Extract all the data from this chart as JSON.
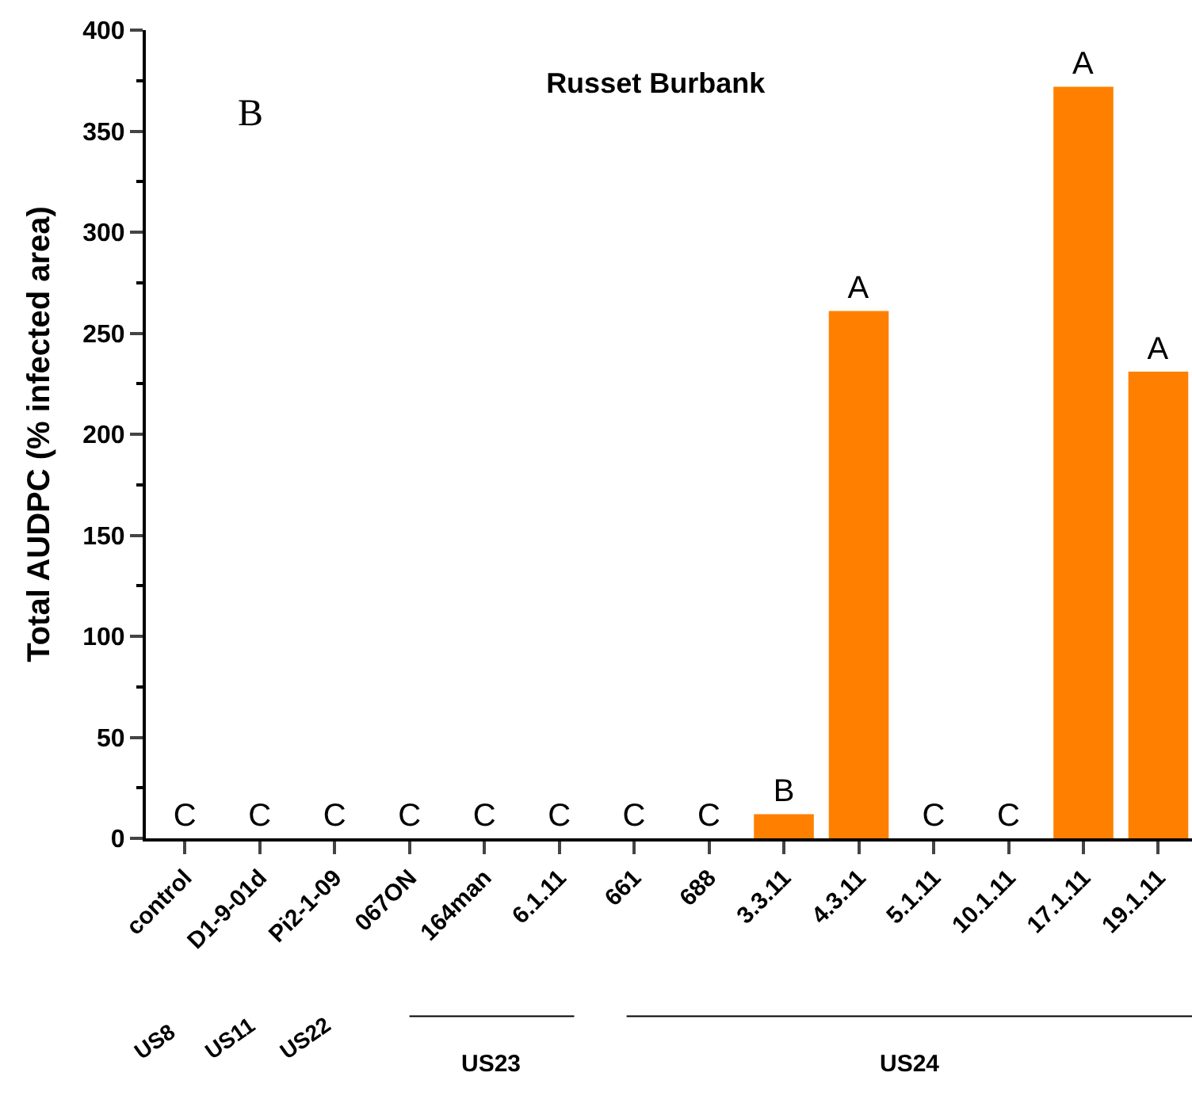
{
  "chart_data": {
    "type": "bar",
    "title": "Russet Burbank",
    "ylabel": "Total AUDPC (% infected area)",
    "categories": [
      "control",
      "D1-9-01d",
      "Pi2-1-09",
      "067ON",
      "164man",
      "6.1.11",
      "661",
      "688",
      "3.3.11",
      "4.3.11",
      "5.1.11",
      "10.1.11",
      "17.1.11",
      "19.1.11"
    ],
    "values": [
      0,
      0,
      0,
      0,
      0,
      0,
      0,
      0,
      12,
      261,
      0,
      0,
      372,
      231
    ],
    "value_labels": [
      "C",
      "C",
      "C",
      "C",
      "C",
      "C",
      "C",
      "C",
      "B",
      "A",
      "C",
      "C",
      "A",
      "A"
    ],
    "color": "#ff8000",
    "ylim": [
      0,
      400
    ],
    "yticks": [
      0,
      50,
      100,
      150,
      200,
      250,
      300,
      350,
      400
    ],
    "annotations": [
      "B",
      "US8",
      "US11",
      "US22",
      "US23",
      "US24"
    ]
  }
}
